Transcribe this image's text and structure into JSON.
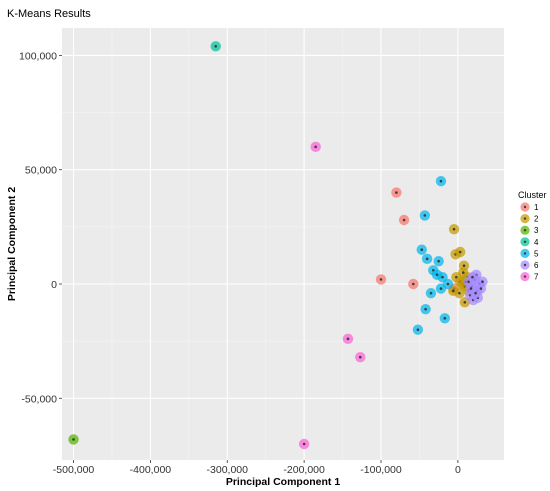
{
  "chart_data": {
    "type": "scatter",
    "title": "K-Means Results",
    "xlabel": "Principal Component 1",
    "ylabel": "Principal Component 2",
    "xlim": [
      -515000,
      60000
    ],
    "ylim": [
      -77000,
      112000
    ],
    "xticks": [
      -500000,
      -400000,
      -300000,
      -200000,
      -100000,
      0
    ],
    "xtick_labels": [
      "-500,000",
      "-400,000",
      "-300,000",
      "-200,000",
      "-100,000",
      "0"
    ],
    "yticks": [
      -50000,
      0,
      50000,
      100000
    ],
    "ytick_labels": [
      "-50,000",
      "0",
      "50,000",
      "100,000"
    ],
    "grid": true,
    "legend_title": "Cluster",
    "legend_position": "right",
    "series": [
      {
        "name": "1",
        "color": "#F8766D",
        "points": [
          [
            -80000,
            40000
          ],
          [
            -70000,
            28000
          ],
          [
            -100000,
            2000
          ],
          [
            -58000,
            0
          ],
          [
            -5000,
            -2000
          ]
        ]
      },
      {
        "name": "2",
        "color": "#C49A00",
        "points": [
          [
            -5000,
            24000
          ],
          [
            -3000,
            13000
          ],
          [
            3000,
            14000
          ],
          [
            8000,
            8000
          ],
          [
            -2000,
            3000
          ],
          [
            3000,
            1000
          ],
          [
            6000,
            0
          ],
          [
            9000,
            -1000
          ],
          [
            -6000,
            -3000
          ],
          [
            2000,
            -4000
          ],
          [
            12000,
            3000
          ],
          [
            7000,
            5000
          ],
          [
            9000,
            -8000
          ],
          [
            14000,
            -3000
          ],
          [
            10000,
            1000
          ]
        ]
      },
      {
        "name": "3",
        "color": "#53B400",
        "points": [
          [
            -500000,
            -68000
          ]
        ]
      },
      {
        "name": "4",
        "color": "#00C094",
        "points": [
          [
            -315000,
            104000
          ]
        ]
      },
      {
        "name": "5",
        "color": "#00B6EB",
        "points": [
          [
            -22000,
            45000
          ],
          [
            -43000,
            30000
          ],
          [
            -47000,
            15000
          ],
          [
            -40000,
            11000
          ],
          [
            -32000,
            6000
          ],
          [
            -25000,
            10000
          ],
          [
            -27000,
            4000
          ],
          [
            -20000,
            3000
          ],
          [
            -35000,
            -4000
          ],
          [
            -22000,
            -2000
          ],
          [
            -42000,
            -11000
          ],
          [
            -52000,
            -20000
          ],
          [
            -17000,
            -15000
          ],
          [
            -13000,
            0
          ]
        ]
      },
      {
        "name": "6",
        "color": "#A58AFF",
        "points": [
          [
            18000,
            -1000
          ],
          [
            22000,
            2000
          ],
          [
            25000,
            -3000
          ],
          [
            28000,
            0
          ],
          [
            16000,
            -5000
          ],
          [
            20000,
            -7000
          ],
          [
            24000,
            4000
          ],
          [
            30000,
            -2000
          ],
          [
            14000,
            1000
          ],
          [
            26000,
            -6000
          ],
          [
            19000,
            3000
          ],
          [
            23000,
            -4000
          ],
          [
            32000,
            1000
          ],
          [
            17000,
            -2000
          ]
        ]
      },
      {
        "name": "7",
        "color": "#FB61D7",
        "points": [
          [
            -185000,
            60000
          ],
          [
            -143000,
            -24000
          ],
          [
            -127000,
            -32000
          ],
          [
            -200000,
            -70000
          ]
        ]
      }
    ]
  }
}
